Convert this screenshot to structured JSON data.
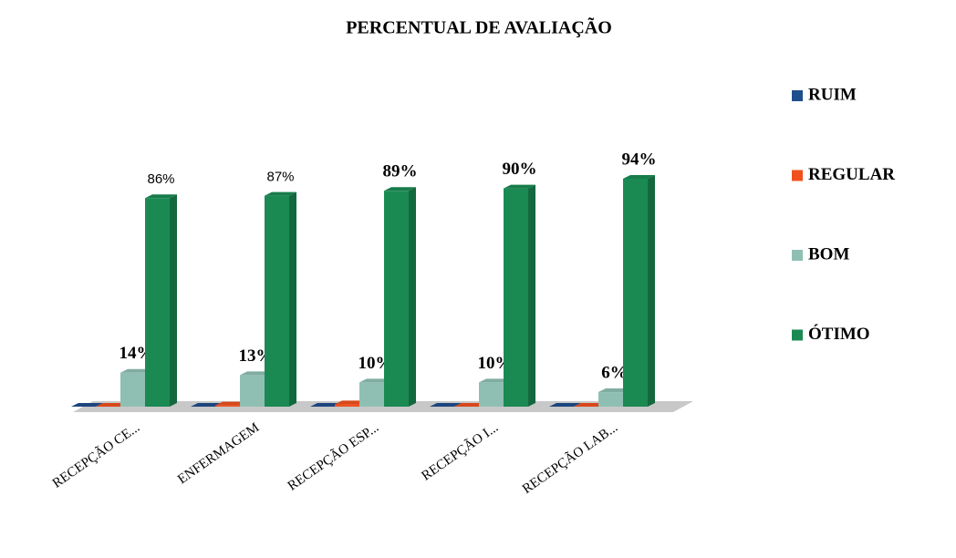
{
  "chart_data": {
    "type": "bar3d",
    "title": "PERCENTUAL DE AVALIAÇÃO",
    "categories": [
      "RECEPÇÃO CE...",
      "ENFERMAGEM",
      "RECEPÇÃO  ESP...",
      "RECEPÇÃO I...",
      "RECEPÇÃO LAB..."
    ],
    "series": [
      {
        "name": "RUIM",
        "color": "#1f4e8c",
        "values": [
          0,
          0,
          0,
          0,
          0
        ]
      },
      {
        "name": "REGULAR",
        "color": "#f0501e",
        "values": [
          0,
          0.5,
          1,
          0,
          0
        ]
      },
      {
        "name": "BOM",
        "color": "#8fbfb3",
        "values": [
          14,
          13,
          10,
          10,
          6
        ],
        "value_labels": [
          "14%",
          "13%",
          "10%",
          "10%",
          "6%"
        ]
      },
      {
        "name": "ÓTIMO",
        "color": "#1a8a52",
        "values": [
          86,
          87,
          89,
          90,
          94
        ],
        "value_labels": [
          "86%",
          "87%",
          "89%",
          "90%",
          "94%"
        ]
      }
    ],
    "legend": "right"
  }
}
